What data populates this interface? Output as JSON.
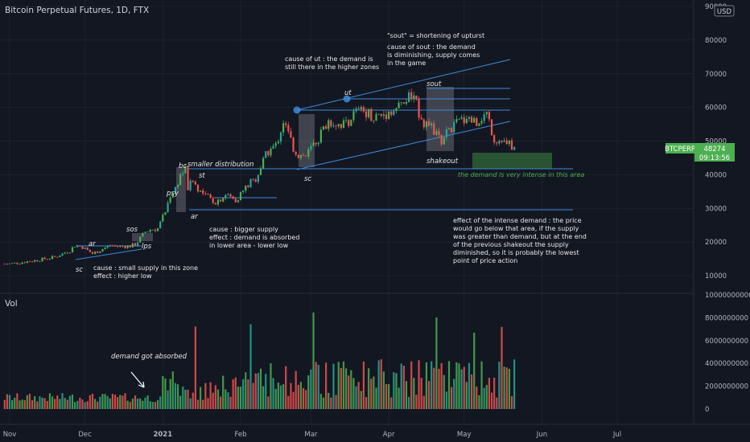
{
  "header": {
    "title": "Bitcoin Perpetual Futures, 1D, FTX"
  },
  "currency_badge": "USD",
  "price_tag": {
    "symbol": "BTCPERP",
    "price": "48274",
    "countdown": "09:13:56",
    "color": "#4caf50"
  },
  "volume_label": "Vol",
  "colors": {
    "up": "#26a69a",
    "up_alt": "#4caf50",
    "down": "#ef5350",
    "line": "#3d8bd9",
    "bg": "#131722",
    "box": "#787b86",
    "demand_box": "#2e5e35"
  },
  "annotations": {
    "sout_def": "\"sout\" = shortening of upturst",
    "cause_ut": [
      "cause of ut : the demand is",
      "still there in the higher zones"
    ],
    "cause_sout": [
      "cause of sout : the demand",
      "is diminishing, supply comes",
      "in the game"
    ],
    "smaller_distribution": "smaller distribution",
    "demand_intense": "the demand is very intense in this area",
    "effect_intense": [
      "effect of the intense demand : the price",
      "would go below that area, if the supply",
      "was greater than demand, but at the end",
      "of the previous shakeout the supply",
      "diminished, so it is probably the lowest",
      "point of price action"
    ],
    "cause_bigger": [
      "cause : bigger supply",
      "effect : demand is absorbed",
      "in lower area - lower low"
    ],
    "cause_small": [
      "cause : small supply in this zone",
      "effect : higher low"
    ],
    "demand_absorbed": "demand got absorbed",
    "labels": {
      "ut": "ut",
      "sout": "sout",
      "shakeout": "shakeout",
      "sc_main": "sc",
      "bc": "bc",
      "st": "st",
      "psy": "psy",
      "ar_main": "ar",
      "sos": "sos",
      "lps": "lps",
      "ar_dec": "ar",
      "sc_dec": "sc"
    }
  },
  "chart_data": {
    "type": "candlestick",
    "title": "Bitcoin Perpetual Futures, 1D, FTX",
    "price_axis": {
      "ticks": [
        10000,
        20000,
        30000,
        40000,
        50000,
        60000,
        70000,
        80000,
        90000
      ],
      "labels": [
        "10000",
        "20000",
        "30000",
        "40000",
        "50000",
        "60000",
        "70000",
        "80000",
        "90000"
      ]
    },
    "volume_axis": {
      "ticks": [
        0,
        2000000000,
        4000000000,
        6000000000,
        8000000000,
        10000000000
      ],
      "labels": [
        "0",
        "2000000000",
        "4000000000",
        "6000000000",
        "8000000000",
        "10000000000"
      ]
    },
    "x_axis": {
      "labels": [
        "Nov",
        "Dec",
        "2021",
        "Feb",
        "Mar",
        "Apr",
        "May",
        "Jun",
        "Jul"
      ],
      "positions_days": [
        0,
        30,
        61,
        92,
        120,
        151,
        181,
        212,
        242
      ]
    },
    "price_anchors_days": [
      0,
      10,
      18,
      24,
      26,
      29,
      33,
      40,
      43,
      48,
      50,
      54,
      56,
      59,
      62,
      64,
      66,
      68,
      70,
      71,
      73,
      77,
      82,
      86,
      90,
      95,
      98,
      103,
      106,
      109,
      113,
      115,
      118,
      123,
      127,
      133,
      138,
      142,
      145,
      149,
      155,
      160,
      165,
      170,
      172,
      175,
      178,
      182,
      185,
      190,
      193,
      198,
      201
    ],
    "price_anchors_close": [
      13500,
      14500,
      15500,
      17500,
      19000,
      18500,
      16500,
      19000,
      18700,
      18800,
      19200,
      23000,
      23700,
      24000,
      29000,
      34000,
      36000,
      40000,
      41500,
      36000,
      38000,
      34000,
      32000,
      34000,
      32500,
      37000,
      39000,
      47000,
      48500,
      56000,
      48000,
      46000,
      45500,
      51000,
      56000,
      55000,
      58500,
      59000,
      57000,
      58000,
      60000,
      63500,
      56000,
      52000,
      50000,
      53500,
      55000,
      57500,
      56000,
      58000,
      51000,
      49000,
      48274
    ],
    "volume_bars_count": 195,
    "horizontal_levels": [
      42000,
      58900,
      62000,
      65000,
      30800
    ],
    "last_price": 48274
  }
}
